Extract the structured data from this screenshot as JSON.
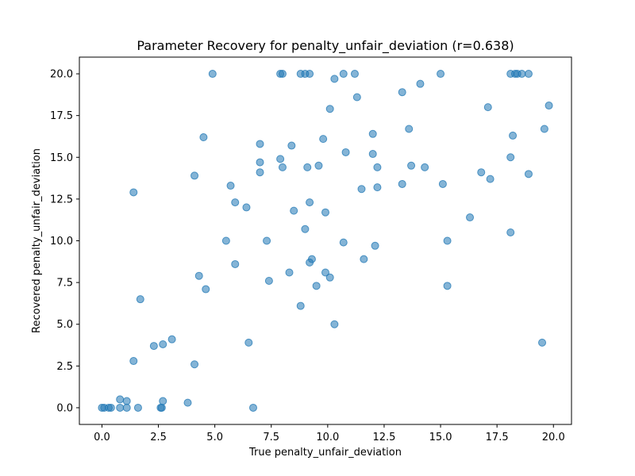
{
  "chart_data": {
    "type": "scatter",
    "title": "Parameter Recovery for penalty_unfair_deviation (r=0.638)",
    "xlabel": "True penalty_unfair_deviation",
    "ylabel": "Recovered penalty_unfair_deviation",
    "xlim": [
      -1.0,
      20.8
    ],
    "ylim": [
      -1.0,
      21.0
    ],
    "xticks": [
      0.0,
      2.5,
      5.0,
      7.5,
      10.0,
      12.5,
      15.0,
      17.5,
      20.0
    ],
    "yticks": [
      0.0,
      2.5,
      5.0,
      7.5,
      10.0,
      12.5,
      15.0,
      17.5,
      20.0
    ],
    "xtick_labels": [
      "0.0",
      "2.5",
      "5.0",
      "7.5",
      "10.0",
      "12.5",
      "15.0",
      "17.5",
      "20.0"
    ],
    "ytick_labels": [
      "0.0",
      "2.5",
      "5.0",
      "7.5",
      "10.0",
      "12.5",
      "15.0",
      "17.5",
      "20.0"
    ],
    "grid": false,
    "marker_color": "#1f77b4",
    "marker_alpha": 0.55,
    "points": [
      [
        4.9,
        20.0
      ],
      [
        7.9,
        20.0
      ],
      [
        8.0,
        20.0
      ],
      [
        8.8,
        20.0
      ],
      [
        9.0,
        20.0
      ],
      [
        9.2,
        20.0
      ],
      [
        10.7,
        20.0
      ],
      [
        11.2,
        20.0
      ],
      [
        15.0,
        20.0
      ],
      [
        18.1,
        20.0
      ],
      [
        18.3,
        20.0
      ],
      [
        18.4,
        20.0
      ],
      [
        18.6,
        20.0
      ],
      [
        18.9,
        20.0
      ],
      [
        10.3,
        19.7
      ],
      [
        14.1,
        19.4
      ],
      [
        13.3,
        18.9
      ],
      [
        11.3,
        18.6
      ],
      [
        19.8,
        18.1
      ],
      [
        17.1,
        18.0
      ],
      [
        10.1,
        17.9
      ],
      [
        13.6,
        16.7
      ],
      [
        19.6,
        16.7
      ],
      [
        12.0,
        16.4
      ],
      [
        18.2,
        16.3
      ],
      [
        4.5,
        16.2
      ],
      [
        9.8,
        16.1
      ],
      [
        7.0,
        15.8
      ],
      [
        8.4,
        15.7
      ],
      [
        10.8,
        15.3
      ],
      [
        12.0,
        15.2
      ],
      [
        18.1,
        15.0
      ],
      [
        7.9,
        14.9
      ],
      [
        7.0,
        14.7
      ],
      [
        13.7,
        14.5
      ],
      [
        9.6,
        14.5
      ],
      [
        8.0,
        14.4
      ],
      [
        9.1,
        14.4
      ],
      [
        12.2,
        14.4
      ],
      [
        14.3,
        14.4
      ],
      [
        7.0,
        14.1
      ],
      [
        16.8,
        14.1
      ],
      [
        4.1,
        13.9
      ],
      [
        18.9,
        14.0
      ],
      [
        17.2,
        13.7
      ],
      [
        13.3,
        13.4
      ],
      [
        15.1,
        13.4
      ],
      [
        5.7,
        13.3
      ],
      [
        12.2,
        13.2
      ],
      [
        11.5,
        13.1
      ],
      [
        1.4,
        12.9
      ],
      [
        9.2,
        12.3
      ],
      [
        5.9,
        12.3
      ],
      [
        6.4,
        12.0
      ],
      [
        8.5,
        11.8
      ],
      [
        9.9,
        11.7
      ],
      [
        16.3,
        11.4
      ],
      [
        9.0,
        10.7
      ],
      [
        18.1,
        10.5
      ],
      [
        7.3,
        10.0
      ],
      [
        5.5,
        10.0
      ],
      [
        15.3,
        10.0
      ],
      [
        10.7,
        9.9
      ],
      [
        12.1,
        9.7
      ],
      [
        9.3,
        8.9
      ],
      [
        11.6,
        8.9
      ],
      [
        9.2,
        8.7
      ],
      [
        5.9,
        8.6
      ],
      [
        8.3,
        8.1
      ],
      [
        9.9,
        8.1
      ],
      [
        4.3,
        7.9
      ],
      [
        10.1,
        7.8
      ],
      [
        7.4,
        7.6
      ],
      [
        9.5,
        7.3
      ],
      [
        15.3,
        7.3
      ],
      [
        4.6,
        7.1
      ],
      [
        1.7,
        6.5
      ],
      [
        8.8,
        6.1
      ],
      [
        10.3,
        5.0
      ],
      [
        3.1,
        4.1
      ],
      [
        6.5,
        3.9
      ],
      [
        19.5,
        3.9
      ],
      [
        2.7,
        3.8
      ],
      [
        2.3,
        3.7
      ],
      [
        1.4,
        2.8
      ],
      [
        4.1,
        2.6
      ],
      [
        0.8,
        0.5
      ],
      [
        1.1,
        0.4
      ],
      [
        2.7,
        0.4
      ],
      [
        3.8,
        0.3
      ],
      [
        0.0,
        0.0
      ],
      [
        0.1,
        0.0
      ],
      [
        0.3,
        0.0
      ],
      [
        0.4,
        0.0
      ],
      [
        0.8,
        0.0
      ],
      [
        1.1,
        0.0
      ],
      [
        1.6,
        0.0
      ],
      [
        2.6,
        0.0
      ],
      [
        2.65,
        0.0
      ],
      [
        6.7,
        0.0
      ]
    ]
  }
}
